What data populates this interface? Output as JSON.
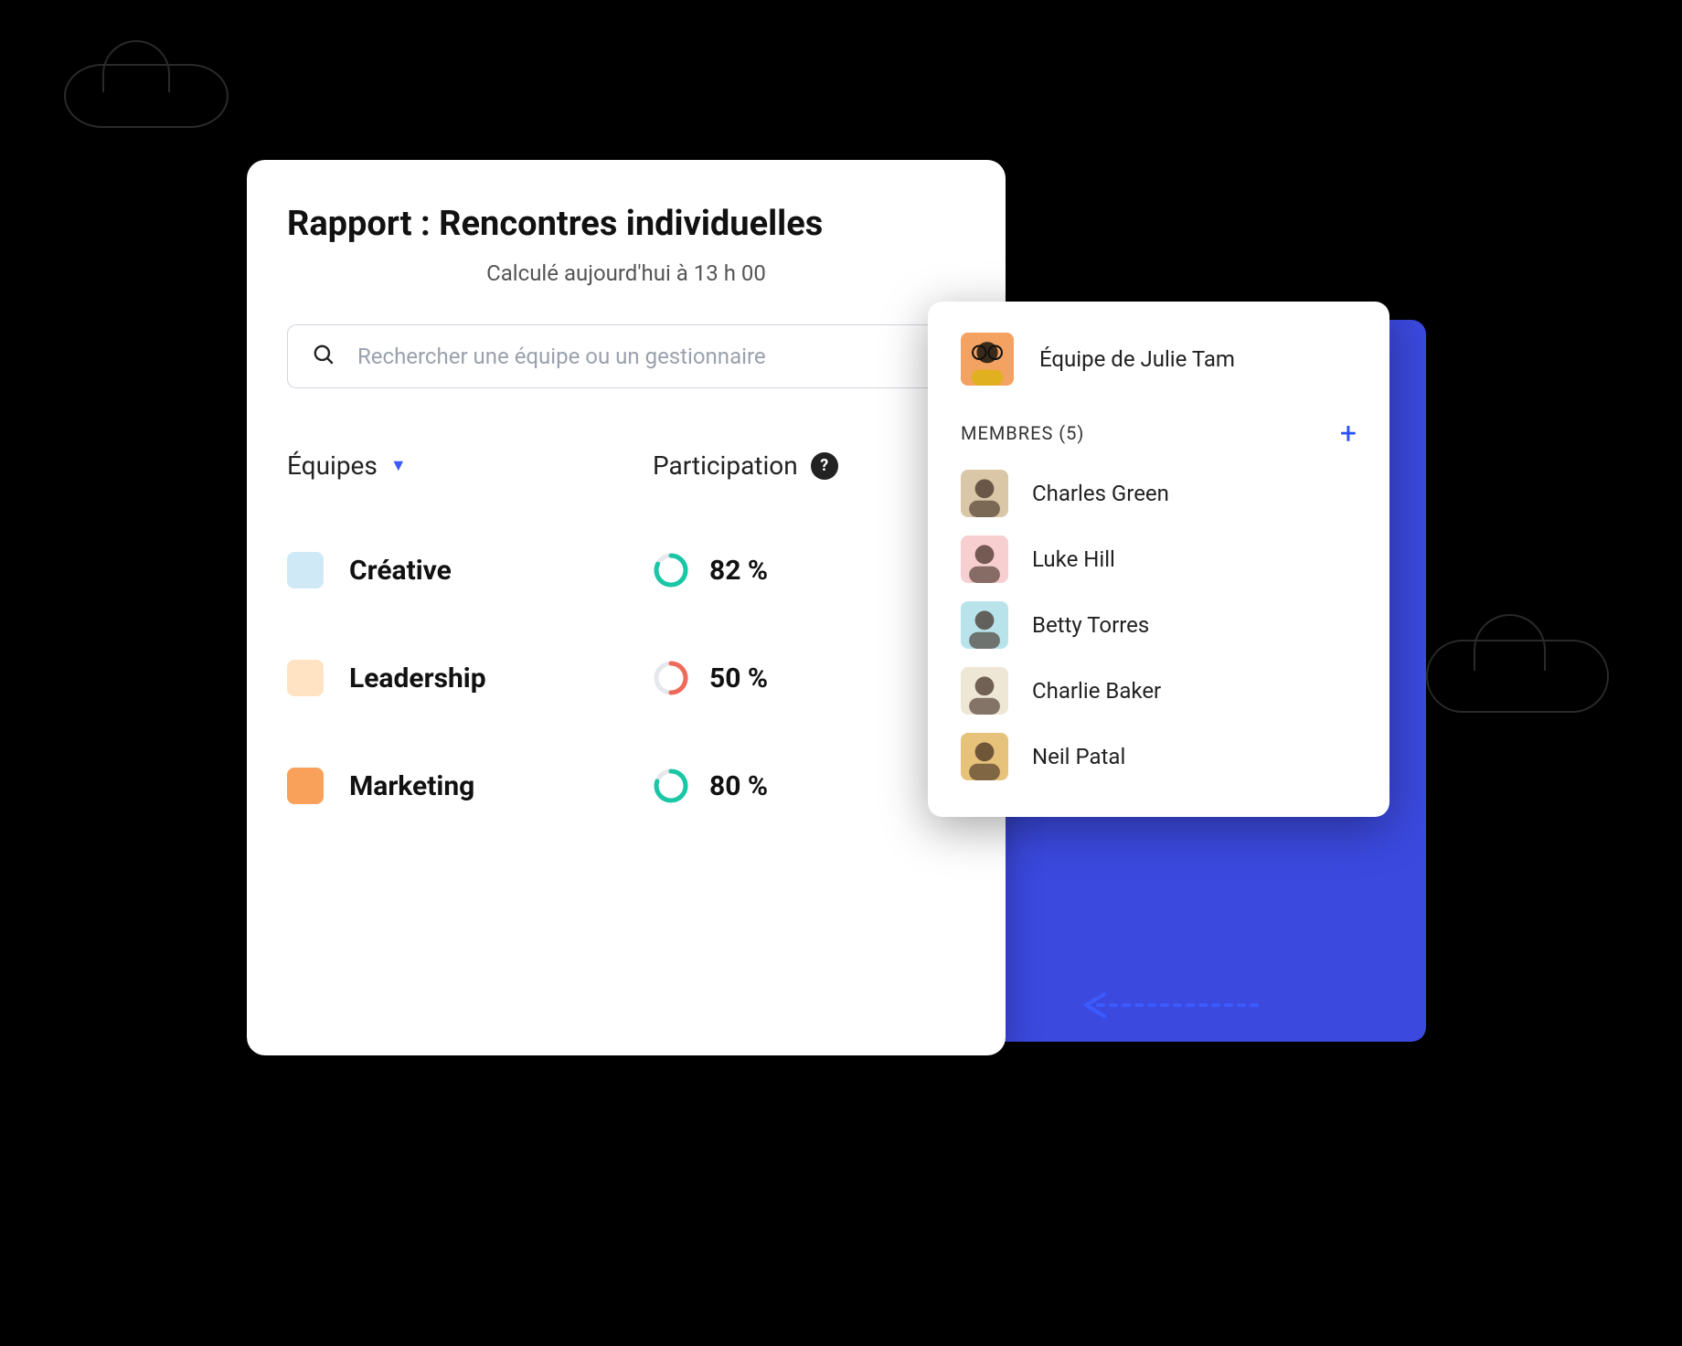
{
  "background_color": "#000000",
  "accent_blue": "#3b49df",
  "report": {
    "title": "Rapport : Rencontres individuelles",
    "subtitle": "Calculé aujourd'hui à 13 h 00",
    "search_placeholder": "Rechercher une équipe ou un gestionnaire",
    "columns": {
      "teams_label": "Équipes",
      "participation_label": "Participation"
    },
    "donut_track_color": "#e6e8ec",
    "teams": [
      {
        "name": "Créative",
        "swatch_color": "#cfe9f7",
        "pct": 82,
        "pct_label": "82 %",
        "ring_color": "#19c6a5"
      },
      {
        "name": "Leadership",
        "swatch_color": "#ffe3c2",
        "pct": 50,
        "pct_label": "50 %",
        "ring_color": "#ef6a5a"
      },
      {
        "name": "Marketing",
        "swatch_color": "#f9a15a",
        "pct": 80,
        "pct_label": "80 %",
        "ring_color": "#19c6a5"
      }
    ]
  },
  "popover": {
    "team_title": "Équipe de Julie Tam",
    "owner_avatar_bg": "#f4a261",
    "members_label": "MEMBRES (5)",
    "members_count": 5,
    "add_symbol": "+",
    "members": [
      {
        "name": "Charles Green",
        "avatar_bg": "#d9c7a7"
      },
      {
        "name": "Luke Hill",
        "avatar_bg": "#f7cfd0"
      },
      {
        "name": "Betty Torres",
        "avatar_bg": "#b9e3ea"
      },
      {
        "name": "Charlie Baker",
        "avatar_bg": "#efe7d6"
      },
      {
        "name": "Neil Patal",
        "avatar_bg": "#e6c27a"
      }
    ]
  },
  "decor": {
    "cloud_stroke": "#2a2a2a",
    "arrow_color": "#3b5bff"
  }
}
